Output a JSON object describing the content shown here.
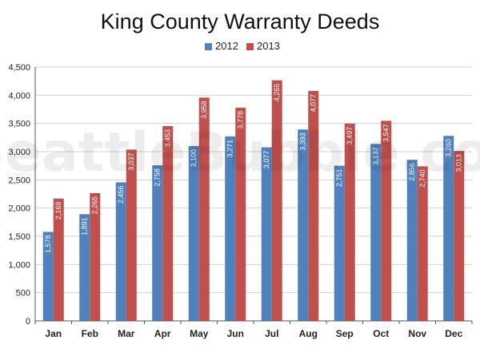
{
  "chart_data": {
    "type": "bar",
    "title": "King County Warranty Deeds",
    "categories": [
      "Jan",
      "Feb",
      "Mar",
      "Apr",
      "May",
      "Jun",
      "Jul",
      "Aug",
      "Sep",
      "Oct",
      "Nov",
      "Dec"
    ],
    "series": [
      {
        "name": "2012",
        "color": "#4f81bd",
        "values": [
          1578,
          1891,
          2456,
          2758,
          3100,
          3271,
          3077,
          3393,
          2751,
          3137,
          2856,
          3280
        ],
        "labels": [
          "1,578",
          "1,891",
          "2,456",
          "2,758",
          "3,100",
          "3,271",
          "3,077",
          "3,393",
          "2,751",
          "3,137",
          "2,856",
          "3,280"
        ]
      },
      {
        "name": "2013",
        "color": "#c0504d",
        "values": [
          2169,
          2265,
          3037,
          3453,
          3958,
          3778,
          4265,
          4077,
          3497,
          3547,
          2740,
          3013
        ],
        "labels": [
          "2,169",
          "2,265",
          "3,037",
          "3,453",
          "3,958",
          "3,778",
          "4,265",
          "4,077",
          "3,497",
          "3,547",
          "2,740",
          "3,013"
        ]
      }
    ],
    "ylim": [
      0,
      4500
    ],
    "yticks": [
      0,
      500,
      1000,
      1500,
      2000,
      2500,
      3000,
      3500,
      4000,
      4500
    ],
    "ytick_labels": [
      "0",
      "500",
      "1,000",
      "1,500",
      "2,000",
      "2,500",
      "3,000",
      "3,500",
      "4,000",
      "4,500"
    ],
    "grid": true,
    "legend_position": "top-center",
    "watermark": "SeattleBubble.com"
  }
}
